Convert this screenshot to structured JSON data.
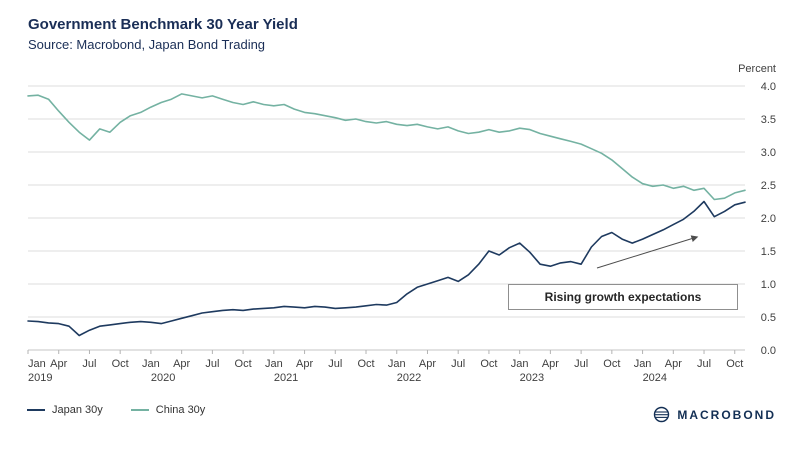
{
  "header": {
    "title": "Government Benchmark 30 Year Yield",
    "subtitle": "Source: Macrobond, Japan Bond Trading"
  },
  "chart_data": {
    "type": "line",
    "title": "Government Benchmark 30 Year Yield",
    "subtitle": "Source: Macrobond, Japan Bond Trading",
    "ylabel": "Percent",
    "ylim": [
      0.0,
      4.0
    ],
    "grid": "horizontal",
    "legend_position": "bottom-left",
    "y_ticks": [
      0,
      0.5,
      1.0,
      1.5,
      2.0,
      2.5,
      3.0,
      3.5,
      4.0
    ],
    "x_ticks": [
      {
        "i": 0,
        "label": "Jan",
        "year": "2019"
      },
      {
        "i": 3,
        "label": "Apr"
      },
      {
        "i": 6,
        "label": "Jul"
      },
      {
        "i": 9,
        "label": "Oct"
      },
      {
        "i": 12,
        "label": "Jan",
        "year": "2020"
      },
      {
        "i": 15,
        "label": "Apr"
      },
      {
        "i": 18,
        "label": "Jul"
      },
      {
        "i": 21,
        "label": "Oct"
      },
      {
        "i": 24,
        "label": "Jan",
        "year": "2021"
      },
      {
        "i": 27,
        "label": "Apr"
      },
      {
        "i": 30,
        "label": "Jul"
      },
      {
        "i": 33,
        "label": "Oct"
      },
      {
        "i": 36,
        "label": "Jan",
        "year": "2022"
      },
      {
        "i": 39,
        "label": "Apr"
      },
      {
        "i": 42,
        "label": "Jul"
      },
      {
        "i": 45,
        "label": "Oct"
      },
      {
        "i": 48,
        "label": "Jan",
        "year": "2023"
      },
      {
        "i": 51,
        "label": "Apr"
      },
      {
        "i": 54,
        "label": "Jul"
      },
      {
        "i": 57,
        "label": "Oct"
      },
      {
        "i": 60,
        "label": "Jan",
        "year": "2024"
      },
      {
        "i": 63,
        "label": "Apr"
      },
      {
        "i": 66,
        "label": "Jul"
      },
      {
        "i": 69,
        "label": "Oct"
      }
    ],
    "series": [
      {
        "name": "Japan 30y",
        "color": "#1e3a5f",
        "values": [
          0.44,
          0.43,
          0.41,
          0.4,
          0.36,
          0.22,
          0.3,
          0.36,
          0.38,
          0.4,
          0.42,
          0.43,
          0.42,
          0.4,
          0.44,
          0.48,
          0.52,
          0.56,
          0.58,
          0.6,
          0.61,
          0.6,
          0.62,
          0.63,
          0.64,
          0.66,
          0.65,
          0.64,
          0.66,
          0.65,
          0.63,
          0.64,
          0.65,
          0.67,
          0.69,
          0.68,
          0.72,
          0.85,
          0.95,
          1.0,
          1.05,
          1.1,
          1.04,
          1.14,
          1.3,
          1.5,
          1.44,
          1.55,
          1.62,
          1.48,
          1.3,
          1.27,
          1.32,
          1.34,
          1.3,
          1.56,
          1.72,
          1.78,
          1.68,
          1.62,
          1.68,
          1.75,
          1.82,
          1.9,
          1.98,
          2.1,
          2.25,
          2.02,
          2.1,
          2.2,
          2.24
        ]
      },
      {
        "name": "China 30y",
        "color": "#74b2a2",
        "values": [
          3.85,
          3.86,
          3.8,
          3.62,
          3.45,
          3.3,
          3.18,
          3.35,
          3.3,
          3.45,
          3.55,
          3.6,
          3.68,
          3.75,
          3.8,
          3.88,
          3.85,
          3.82,
          3.85,
          3.8,
          3.75,
          3.72,
          3.76,
          3.72,
          3.7,
          3.72,
          3.65,
          3.6,
          3.58,
          3.55,
          3.52,
          3.48,
          3.5,
          3.46,
          3.44,
          3.46,
          3.42,
          3.4,
          3.42,
          3.38,
          3.35,
          3.38,
          3.32,
          3.28,
          3.3,
          3.34,
          3.3,
          3.32,
          3.36,
          3.34,
          3.28,
          3.24,
          3.2,
          3.16,
          3.12,
          3.05,
          2.98,
          2.88,
          2.75,
          2.62,
          2.52,
          2.48,
          2.5,
          2.45,
          2.48,
          2.42,
          2.45,
          2.28,
          2.3,
          2.38,
          2.42
        ]
      }
    ],
    "annotation": {
      "text": "Rising growth expectations"
    }
  },
  "footer": {
    "logo_text": "MACROBOND"
  }
}
